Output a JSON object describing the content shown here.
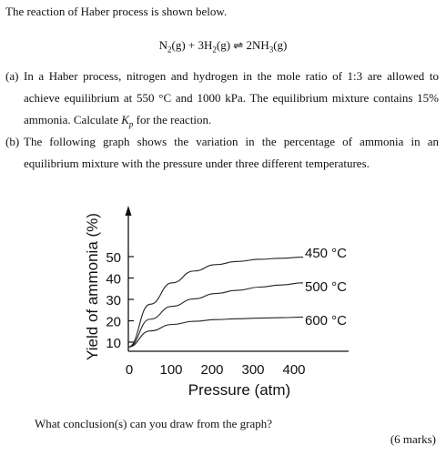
{
  "document": {
    "intro": "The reaction of Haber process is shown below.",
    "equation": {
      "n2": "N",
      "n2_sub": "2",
      "n2_state": "(g) + 3H",
      "h2_sub": "2",
      "h2_state": "(g) ⇌ 2NH",
      "nh3_sub": "3",
      "nh3_state": "(g)"
    },
    "part_a": {
      "label": "(a)",
      "text_1": "In a Haber process, nitrogen and hydrogen in the mole ratio of 1:3 are allowed to achieve equilibrium at 550 °C and 1000 kPa. The equilibrium mixture contains 15% ammonia. Calculate ",
      "kp_symbol": "K",
      "kp_sub": "p",
      "text_2": " for the reaction."
    },
    "part_b": {
      "label": "(b)",
      "text": "The following graph shows the variation in the percentage of ammonia in an equilibrium mixture with the pressure under three different temperatures."
    },
    "question": "What conclusion(s) can you draw from the graph?",
    "marks": "(6  marks)"
  },
  "chart_data": {
    "type": "line",
    "xlabel": "Pressure (atm)",
    "ylabel": "Yield of ammonia (%)",
    "x_ticks": [
      "0",
      "100",
      "200",
      "300",
      "400"
    ],
    "y_ticks": [
      "10",
      "20",
      "30",
      "40",
      "50"
    ],
    "xlim": [
      0,
      400
    ],
    "ylim": [
      0,
      50
    ],
    "grid": false,
    "series": [
      {
        "name": "450 °C",
        "x": [
          0,
          50,
          100,
          150,
          200,
          250,
          300,
          350,
          400
        ],
        "y": [
          2,
          22,
          32,
          37.5,
          40.5,
          42,
          43,
          43.5,
          44
        ]
      },
      {
        "name": "500 °C",
        "x": [
          0,
          50,
          100,
          150,
          200,
          250,
          300,
          350,
          400
        ],
        "y": [
          2,
          15,
          21,
          24.5,
          27,
          28.5,
          30,
          31,
          32
        ]
      },
      {
        "name": "600 °C",
        "x": [
          0,
          50,
          100,
          150,
          200,
          250,
          300,
          350,
          400
        ],
        "y": [
          2,
          9.5,
          12.5,
          14,
          14.8,
          15.2,
          15.5,
          15.7,
          16
        ]
      }
    ]
  }
}
